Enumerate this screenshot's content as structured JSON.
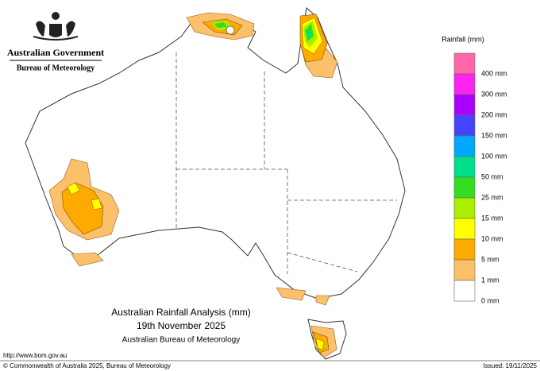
{
  "header": {
    "government": "Australian Government",
    "agency": "Bureau of Meteorology"
  },
  "titles": [
    "Australian Rainfall Analysis (mm)",
    "19th November 2025",
    "Australian Bureau of Meteorology"
  ],
  "legend": {
    "title": "Rainfall (mm)",
    "colors": [
      "#ff66aa",
      "#ff22ee",
      "#aa00ff",
      "#4444ff",
      "#00a8ff",
      "#00e08c",
      "#33dd22",
      "#aaee00",
      "#ffff00",
      "#ffaa00",
      "#fbc06a",
      "#ffffff"
    ],
    "labels": [
      "400 mm",
      "300 mm",
      "200 mm",
      "150 mm",
      "100 mm",
      "50 mm",
      "25 mm",
      "15 mm",
      "10 mm",
      "5 mm",
      "1 mm",
      "0 mm"
    ]
  },
  "footer": {
    "url": "http://www.bom.gov.au",
    "copyright": "© Commonwealth of Australia 2025, Bureau of Meteorology",
    "issued": "Issued: 19/11/2025"
  }
}
